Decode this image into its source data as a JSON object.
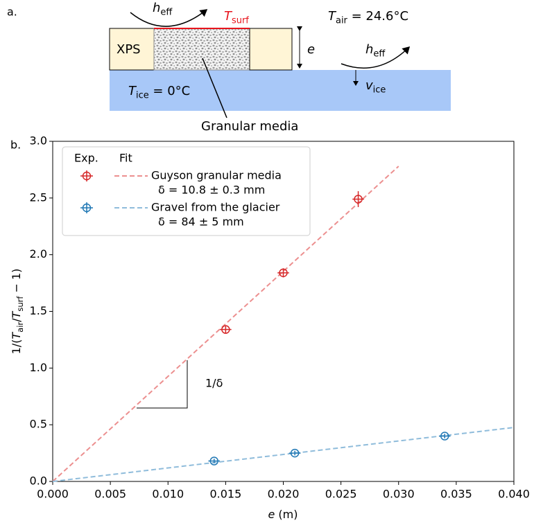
{
  "diagram": {
    "panel_label": "a.",
    "h_top": {
      "parts": [
        {
          "text": "h",
          "style": "italic"
        },
        {
          "text": "eff",
          "style": "sub"
        }
      ]
    },
    "t_surf": {
      "parts": [
        {
          "text": "T",
          "style": "italic"
        },
        {
          "text": "surf",
          "style": "sub"
        }
      ],
      "color": "#e8141c"
    },
    "t_air": {
      "parts": [
        {
          "text": "T",
          "style": "italic"
        },
        {
          "text": "air",
          "style": "sub"
        },
        {
          "text": " = 24.6°C"
        }
      ]
    },
    "xps": {
      "parts": [
        {
          "text": "XPS"
        }
      ]
    },
    "e": {
      "parts": [
        {
          "text": "e",
          "style": "italic"
        }
      ]
    },
    "h_right": {
      "parts": [
        {
          "text": "h",
          "style": "italic"
        },
        {
          "text": "eff",
          "style": "sub"
        }
      ]
    },
    "v_ice": {
      "parts": [
        {
          "text": "v",
          "style": "italic"
        },
        {
          "text": "ice",
          "style": "sub"
        }
      ]
    },
    "t_ice": {
      "parts": [
        {
          "text": "T",
          "style": "italic"
        },
        {
          "text": "ice",
          "style": "sub"
        },
        {
          "text": " = 0°C"
        }
      ]
    },
    "granular": {
      "parts": [
        {
          "text": "Granular media"
        }
      ]
    }
  },
  "chart_data": {
    "type": "errorbar",
    "panel_label": "b.",
    "xlabel": {
      "parts": [
        {
          "text": "e",
          "style": "italic"
        },
        {
          "text": " (m)"
        }
      ]
    },
    "ylabel": {
      "parts": [
        {
          "text": "1/("
        },
        {
          "text": "T",
          "style": "italic"
        },
        {
          "text": "air",
          "style": "sub"
        },
        {
          "text": "/"
        },
        {
          "text": "T",
          "style": "italic"
        },
        {
          "text": "surf",
          "style": "sub"
        },
        {
          "text": " − 1)"
        }
      ]
    },
    "xlim": [
      0,
      0.04
    ],
    "ylim": [
      0,
      3.0
    ],
    "xticks": [
      {
        "value": 0,
        "label": "0.000"
      },
      {
        "value": 0.005,
        "label": "0.005"
      },
      {
        "value": 0.01,
        "label": "0.010"
      },
      {
        "value": 0.015,
        "label": "0.015"
      },
      {
        "value": 0.02,
        "label": "0.020"
      },
      {
        "value": 0.025,
        "label": "0.025"
      },
      {
        "value": 0.03,
        "label": "0.030"
      },
      {
        "value": 0.035,
        "label": "0.035"
      },
      {
        "value": 0.04,
        "label": "0.040"
      }
    ],
    "yticks": [
      {
        "value": 0,
        "label": "0.0"
      },
      {
        "value": 0.5,
        "label": "0.5"
      },
      {
        "value": 1,
        "label": "1.0"
      },
      {
        "value": 1.5,
        "label": "1.5"
      },
      {
        "value": 2,
        "label": "2.0"
      },
      {
        "value": 2.5,
        "label": "2.5"
      },
      {
        "value": 3,
        "label": "3.0"
      }
    ],
    "legend_headers": [
      "Exp.",
      "Fit"
    ],
    "legend_loc": "upper left",
    "series": [
      {
        "name": "Guyson granular media",
        "fit_label": "δ = 10.8 ± 0.3 mm",
        "color": "#d62728",
        "fit_color": "#ec8f8f",
        "x": [
          0.015,
          0.02,
          0.0265
        ],
        "values": [
          1.34,
          1.84,
          2.49
        ],
        "xerr": [
          0.0005,
          0.0005,
          0.0005
        ],
        "yerr": [
          0.03,
          0.04,
          0.07
        ],
        "fit_x": [
          0,
          0.03
        ],
        "fit_values": [
          0,
          2.78
        ]
      },
      {
        "name": "Gravel from the glacier",
        "fit_label": "δ = 84 ± 5 mm",
        "color": "#1f77b4",
        "fit_color": "#8fbcdb",
        "x": [
          0.014,
          0.021,
          0.034
        ],
        "values": [
          0.18,
          0.25,
          0.4
        ],
        "xerr": [
          0.0005,
          0.0005,
          0.0005
        ],
        "yerr": [
          0.02,
          0.02,
          0.02
        ],
        "fit_x": [
          0,
          0.04
        ],
        "fit_values": [
          0,
          0.476
        ]
      }
    ],
    "annotation": "1/δ"
  }
}
